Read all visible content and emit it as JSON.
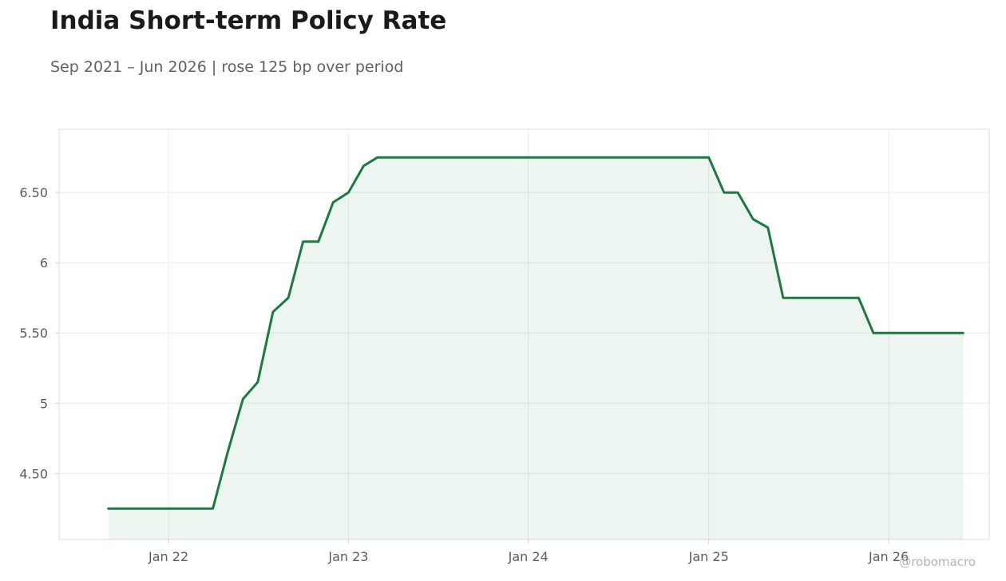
{
  "chart": {
    "title": "India Short-term Policy Rate",
    "subtitle": "Sep 2021 – Jun 2026 | rose 125 bp over period",
    "watermark": "@robomacro"
  },
  "colors": {
    "line": "#1a7a40",
    "fill": "#1a7a40",
    "grid": "#ececec",
    "frame": "#dddddd"
  },
  "chart_data": {
    "type": "area",
    "title": "India Short-term Policy Rate",
    "subtitle": "Sep 2021 – Jun 2026 | rose 125 bp over period",
    "xlabel": "",
    "ylabel": "",
    "ylim": [
      4.03,
      6.95
    ],
    "xlim": [
      "2021-05-24",
      "2026-07-24"
    ],
    "grid": true,
    "legend": "none",
    "x_ticks": [
      {
        "date": "2022-01-01",
        "label": "Jan 22"
      },
      {
        "date": "2023-01-01",
        "label": "Jan 23"
      },
      {
        "date": "2024-01-01",
        "label": "Jan 24"
      },
      {
        "date": "2025-01-01",
        "label": "Jan 25"
      },
      {
        "date": "2026-01-01",
        "label": "Jan 26"
      }
    ],
    "y_ticks": [
      {
        "value": 4.5,
        "label": "4.50"
      },
      {
        "value": 5,
        "label": "5"
      },
      {
        "value": 5.5,
        "label": "5.50"
      },
      {
        "value": 6,
        "label": "6"
      },
      {
        "value": 6.5,
        "label": "6.50"
      }
    ],
    "series": [
      {
        "x": [
          "2021-09-01",
          "2021-10-01",
          "2021-11-01",
          "2021-12-01",
          "2022-01-01",
          "2022-02-01",
          "2022-03-01",
          "2022-04-01",
          "2022-05-01",
          "2022-06-01",
          "2022-07-01",
          "2022-08-01",
          "2022-09-01",
          "2022-10-01",
          "2022-11-01",
          "2022-12-01",
          "2023-01-01",
          "2023-02-01",
          "2023-03-01",
          "2023-04-01",
          "2024-12-01",
          "2025-01-01",
          "2025-02-01",
          "2025-03-01",
          "2025-04-01",
          "2025-05-01",
          "2025-06-01",
          "2025-07-01",
          "2025-08-01",
          "2025-09-01",
          "2025-10-01",
          "2025-11-01",
          "2025-12-01",
          "2026-01-01",
          "2026-02-01",
          "2026-03-01",
          "2026-04-01",
          "2026-05-01",
          "2026-06-01"
        ],
        "values": [
          4.25,
          4.25,
          4.25,
          4.25,
          4.25,
          4.25,
          4.25,
          4.25,
          4.65,
          5.03,
          5.15,
          5.65,
          5.75,
          6.15,
          6.15,
          6.43,
          6.5,
          6.69,
          6.75,
          6.75,
          6.75,
          6.75,
          6.5,
          6.5,
          6.31,
          6.25,
          5.75,
          5.75,
          5.75,
          5.75,
          5.75,
          5.75,
          5.5,
          5.5,
          5.5,
          5.5,
          5.5,
          5.5,
          5.5
        ]
      }
    ]
  }
}
